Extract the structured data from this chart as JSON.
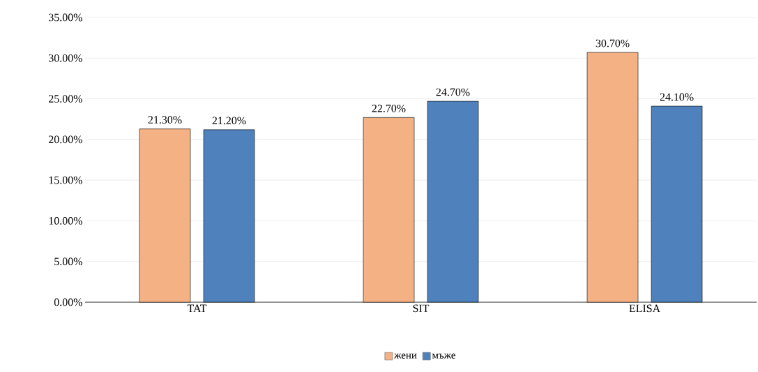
{
  "chart_data": {
    "type": "bar",
    "categories": [
      "TAT",
      "SIT",
      "ELISA"
    ],
    "series": [
      {
        "name": "жени",
        "color": "#f4b183",
        "values": [
          21.3,
          22.7,
          30.7
        ],
        "value_labels": [
          "21.30%",
          "22.70%",
          "30.70%"
        ]
      },
      {
        "name": "мъже",
        "color": "#4f81bd",
        "values": [
          21.2,
          24.7,
          24.1
        ],
        "value_labels": [
          "21.20%",
          "24.70%",
          "24.10%"
        ]
      }
    ],
    "ylim": [
      0,
      35
    ],
    "yticks": [
      {
        "value": 0,
        "label": "0.00%"
      },
      {
        "value": 5,
        "label": "5.00%"
      },
      {
        "value": 10,
        "label": "10.00%"
      },
      {
        "value": 15,
        "label": "15.00%"
      },
      {
        "value": 20,
        "label": "20.00%"
      },
      {
        "value": 25,
        "label": "25.00%"
      },
      {
        "value": 30,
        "label": "30.00%"
      },
      {
        "value": 35,
        "label": "35.00%"
      }
    ],
    "grid": "y",
    "legend": "bottom"
  }
}
